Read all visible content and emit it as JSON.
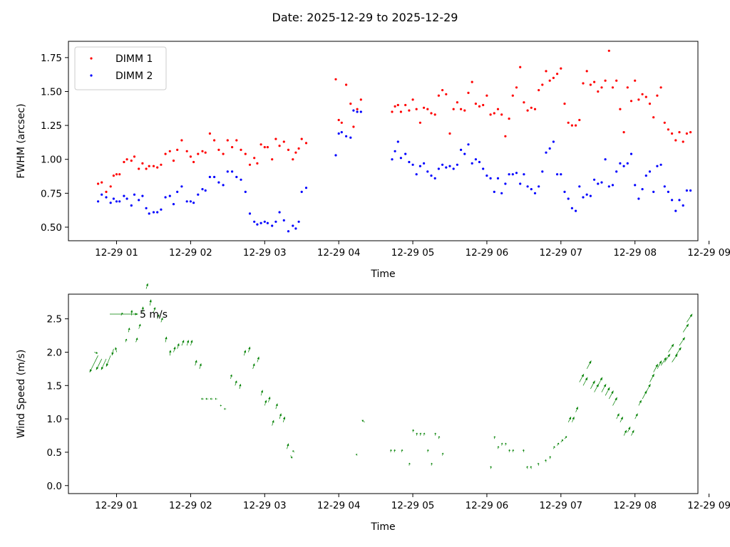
{
  "figure": {
    "title": "Date: 2025-12-29 to 2025-12-29"
  },
  "chart_data": [
    {
      "type": "scatter",
      "xlabel": "Time",
      "ylabel": "FWHM (arcsec)",
      "x_unit": "hours after 2025-12-29 00:00",
      "xlim": [
        0.35,
        8.85
      ],
      "ylim": [
        0.4,
        1.87
      ],
      "x_tick_values": [
        1,
        2,
        3,
        4,
        5,
        6,
        7,
        8,
        9
      ],
      "x_tick_labels": [
        "12-29 01",
        "12-29 02",
        "12-29 03",
        "12-29 04",
        "12-29 05",
        "12-29 06",
        "12-29 07",
        "12-29 08",
        "12-29 09"
      ],
      "y_ticks": [
        0.5,
        0.75,
        1.0,
        1.25,
        1.5,
        1.75
      ],
      "y_tick_labels": [
        "0.50",
        "0.75",
        "1.00",
        "1.25",
        "1.50",
        "1.75"
      ],
      "legend": {
        "position": "upper-left"
      },
      "series": [
        {
          "name": "DIMM 1",
          "color": "#ff0000",
          "x": [
            0.75,
            0.8,
            0.86,
            0.92,
            0.96,
            1.0,
            1.04,
            1.1,
            1.14,
            1.2,
            1.24,
            1.3,
            1.35,
            1.4,
            1.44,
            1.5,
            1.55,
            1.6,
            1.66,
            1.72,
            1.77,
            1.82,
            1.88,
            1.95,
            2.0,
            2.04,
            2.1,
            2.16,
            2.2,
            2.26,
            2.32,
            2.38,
            2.44,
            2.5,
            2.56,
            2.62,
            2.68,
            2.74,
            2.8,
            2.86,
            2.9,
            2.95,
            3.0,
            3.04,
            3.1,
            3.15,
            3.2,
            3.26,
            3.32,
            3.38,
            3.42,
            3.46,
            3.5,
            3.56,
            3.96,
            4.0,
            4.04,
            4.1,
            4.16,
            4.2,
            4.25,
            4.3,
            4.72,
            4.76,
            4.8,
            4.84,
            4.9,
            4.95,
            5.0,
            5.05,
            5.1,
            5.15,
            5.2,
            5.25,
            5.3,
            5.35,
            5.4,
            5.45,
            5.5,
            5.55,
            5.6,
            5.65,
            5.7,
            5.75,
            5.8,
            5.85,
            5.9,
            5.95,
            6.0,
            6.05,
            6.1,
            6.15,
            6.2,
            6.25,
            6.3,
            6.35,
            6.4,
            6.45,
            6.5,
            6.55,
            6.6,
            6.65,
            6.7,
            6.75,
            6.8,
            6.85,
            6.9,
            6.95,
            7.0,
            7.05,
            7.1,
            7.15,
            7.2,
            7.25,
            7.3,
            7.35,
            7.4,
            7.45,
            7.5,
            7.55,
            7.6,
            7.65,
            7.7,
            7.75,
            7.8,
            7.85,
            7.9,
            7.95,
            8.0,
            8.05,
            8.1,
            8.15,
            8.2,
            8.25,
            8.3,
            8.35,
            8.4,
            8.45,
            8.5,
            8.55,
            8.6,
            8.65,
            8.7,
            8.75
          ],
          "y": [
            0.82,
            0.83,
            0.76,
            0.8,
            0.88,
            0.89,
            0.89,
            0.98,
            1.0,
            0.99,
            1.02,
            0.93,
            0.97,
            0.93,
            0.95,
            0.95,
            0.94,
            0.96,
            1.04,
            1.06,
            0.99,
            1.07,
            1.14,
            1.06,
            1.02,
            0.98,
            1.04,
            1.06,
            1.05,
            1.19,
            1.14,
            1.07,
            1.04,
            1.14,
            1.09,
            1.14,
            1.07,
            1.04,
            0.96,
            1.01,
            0.97,
            1.11,
            1.09,
            1.09,
            1.0,
            1.15,
            1.1,
            1.13,
            1.07,
            1.0,
            1.05,
            1.08,
            1.15,
            1.12,
            1.59,
            1.29,
            1.27,
            1.55,
            1.41,
            1.24,
            1.37,
            1.44,
            1.35,
            1.39,
            1.4,
            1.35,
            1.4,
            1.36,
            1.44,
            1.37,
            1.27,
            1.38,
            1.37,
            1.34,
            1.33,
            1.47,
            1.51,
            1.48,
            1.19,
            1.37,
            1.42,
            1.37,
            1.36,
            1.49,
            1.57,
            1.41,
            1.39,
            1.4,
            1.47,
            1.33,
            1.34,
            1.37,
            1.33,
            1.17,
            1.3,
            1.47,
            1.53,
            1.68,
            1.42,
            1.36,
            1.38,
            1.37,
            1.51,
            1.55,
            1.65,
            1.58,
            1.6,
            1.63,
            1.67,
            1.41,
            1.27,
            1.25,
            1.25,
            1.29,
            1.56,
            1.65,
            1.55,
            1.57,
            1.5,
            1.53,
            1.58,
            1.8,
            1.53,
            1.58,
            1.37,
            1.2,
            1.53,
            1.43,
            1.58,
            1.44,
            1.48,
            1.46,
            1.41,
            1.31,
            1.47,
            1.53,
            1.27,
            1.22,
            1.19,
            1.14,
            1.2,
            1.13,
            1.19,
            1.2
          ]
        },
        {
          "name": "DIMM 2",
          "color": "#0000ff",
          "x": [
            0.75,
            0.8,
            0.86,
            0.92,
            0.96,
            1.0,
            1.04,
            1.1,
            1.14,
            1.2,
            1.24,
            1.3,
            1.35,
            1.4,
            1.44,
            1.5,
            1.55,
            1.6,
            1.66,
            1.72,
            1.77,
            1.82,
            1.88,
            1.95,
            2.0,
            2.04,
            2.1,
            2.16,
            2.2,
            2.26,
            2.32,
            2.38,
            2.44,
            2.5,
            2.56,
            2.62,
            2.68,
            2.74,
            2.8,
            2.86,
            2.9,
            2.95,
            3.0,
            3.04,
            3.1,
            3.15,
            3.2,
            3.26,
            3.32,
            3.38,
            3.42,
            3.46,
            3.5,
            3.56,
            3.96,
            4.0,
            4.04,
            4.1,
            4.16,
            4.2,
            4.25,
            4.3,
            4.72,
            4.76,
            4.8,
            4.84,
            4.9,
            4.95,
            5.0,
            5.05,
            5.1,
            5.15,
            5.2,
            5.25,
            5.3,
            5.35,
            5.4,
            5.45,
            5.5,
            5.55,
            5.6,
            5.65,
            5.7,
            5.75,
            5.8,
            5.85,
            5.9,
            5.95,
            6.0,
            6.05,
            6.1,
            6.15,
            6.2,
            6.25,
            6.3,
            6.35,
            6.4,
            6.45,
            6.5,
            6.55,
            6.6,
            6.65,
            6.7,
            6.75,
            6.8,
            6.85,
            6.9,
            6.95,
            7.0,
            7.05,
            7.1,
            7.15,
            7.2,
            7.25,
            7.3,
            7.35,
            7.4,
            7.45,
            7.5,
            7.55,
            7.6,
            7.65,
            7.7,
            7.75,
            7.8,
            7.85,
            7.9,
            7.95,
            8.0,
            8.05,
            8.1,
            8.15,
            8.2,
            8.25,
            8.3,
            8.35,
            8.4,
            8.45,
            8.5,
            8.55,
            8.6,
            8.65,
            8.7,
            8.75
          ],
          "y": [
            0.69,
            0.74,
            0.72,
            0.68,
            0.71,
            0.69,
            0.69,
            0.73,
            0.71,
            0.66,
            0.74,
            0.7,
            0.73,
            0.64,
            0.6,
            0.61,
            0.61,
            0.63,
            0.72,
            0.73,
            0.67,
            0.76,
            0.8,
            0.69,
            0.69,
            0.68,
            0.74,
            0.78,
            0.77,
            0.87,
            0.87,
            0.83,
            0.81,
            0.91,
            0.91,
            0.87,
            0.85,
            0.76,
            0.6,
            0.54,
            0.52,
            0.53,
            0.54,
            0.53,
            0.51,
            0.54,
            0.61,
            0.55,
            0.47,
            0.51,
            0.49,
            0.54,
            0.76,
            0.79,
            1.03,
            1.19,
            1.2,
            1.17,
            1.16,
            1.36,
            1.35,
            1.35,
            1.0,
            1.06,
            1.13,
            1.01,
            1.04,
            0.98,
            0.96,
            0.89,
            0.95,
            0.97,
            0.91,
            0.88,
            0.86,
            0.93,
            0.96,
            0.94,
            0.95,
            0.93,
            0.96,
            1.07,
            1.04,
            1.11,
            0.97,
            1.0,
            0.98,
            0.93,
            0.88,
            0.86,
            0.76,
            0.86,
            0.75,
            0.82,
            0.89,
            0.89,
            0.9,
            0.82,
            0.89,
            0.8,
            0.78,
            0.75,
            0.8,
            0.91,
            1.05,
            1.08,
            1.13,
            0.89,
            0.89,
            0.76,
            0.71,
            0.64,
            0.62,
            0.8,
            0.72,
            0.74,
            0.73,
            0.85,
            0.82,
            0.83,
            1.0,
            0.8,
            0.81,
            0.91,
            0.97,
            0.95,
            0.97,
            1.04,
            0.81,
            0.71,
            0.78,
            0.88,
            0.91,
            0.76,
            0.95,
            0.96,
            0.8,
            0.76,
            0.7,
            0.62,
            0.7,
            0.66,
            0.77,
            0.77
          ]
        }
      ]
    },
    {
      "type": "quiver",
      "xlabel": "Time",
      "ylabel": "Wind Speed (m/s)",
      "x_unit": "hours after 2025-12-29 00:00",
      "xlim": [
        0.35,
        8.85
      ],
      "ylim": [
        -0.12,
        2.87
      ],
      "x_tick_values": [
        1,
        2,
        3,
        4,
        5,
        6,
        7,
        8,
        9
      ],
      "x_tick_labels": [
        "12-29 01",
        "12-29 02",
        "12-29 03",
        "12-29 04",
        "12-29 05",
        "12-29 06",
        "12-29 07",
        "12-29 08",
        "12-29 09"
      ],
      "y_ticks": [
        0.0,
        0.5,
        1.0,
        1.5,
        2.0,
        2.5
      ],
      "y_tick_labels": [
        "0.0",
        "0.5",
        "1.0",
        "1.5",
        "2.0",
        "2.5"
      ],
      "color": "#008000",
      "quiverkey": {
        "label": "5 m/s",
        "speed": 5
      },
      "vectors": {
        "x": [
          0.7,
          0.75,
          0.8,
          0.86,
          0.92,
          0.96,
          1.0,
          1.06,
          1.12,
          1.16,
          1.2,
          1.26,
          1.3,
          1.35,
          1.4,
          1.45,
          1.5,
          1.55,
          1.6,
          1.66,
          1.72,
          1.77,
          1.82,
          1.88,
          1.95,
          2.0,
          2.06,
          2.12,
          2.18,
          2.24,
          2.3,
          2.36,
          2.42,
          2.48,
          2.54,
          2.6,
          2.66,
          2.72,
          2.78,
          2.84,
          2.9,
          2.95,
          3.0,
          3.05,
          3.1,
          3.15,
          3.2,
          3.25,
          3.3,
          3.35,
          3.4,
          4.25,
          4.35,
          4.7,
          4.75,
          4.85,
          4.95,
          5.0,
          5.05,
          5.1,
          5.15,
          5.2,
          5.25,
          5.3,
          5.35,
          5.4,
          6.05,
          6.1,
          6.15,
          6.2,
          6.25,
          6.3,
          6.35,
          6.5,
          6.55,
          6.6,
          6.7,
          6.8,
          6.85,
          6.9,
          6.95,
          7.0,
          7.05,
          7.1,
          7.15,
          7.2,
          7.25,
          7.3,
          7.35,
          7.4,
          7.45,
          7.5,
          7.55,
          7.6,
          7.65,
          7.7,
          7.75,
          7.8,
          7.85,
          7.9,
          7.95,
          8.0,
          8.05,
          8.1,
          8.15,
          8.2,
          8.25,
          8.3,
          8.35,
          8.4,
          8.45,
          8.5,
          8.55,
          8.6,
          8.65,
          8.7
        ],
        "speed": [
          2.0,
          1.95,
          1.9,
          1.9,
          1.95,
          2.05,
          2.0,
          2.55,
          2.15,
          2.3,
          2.55,
          2.15,
          2.35,
          2.6,
          2.95,
          2.7,
          2.6,
          2.5,
          2.45,
          2.15,
          1.95,
          2.0,
          2.05,
          2.1,
          2.1,
          2.1,
          1.8,
          1.75,
          1.3,
          1.3,
          1.3,
          1.3,
          1.2,
          1.15,
          1.6,
          1.5,
          1.45,
          1.95,
          2.0,
          1.75,
          1.85,
          1.35,
          1.2,
          1.25,
          0.9,
          1.15,
          1.0,
          0.95,
          0.55,
          0.45,
          0.5,
          0.45,
          0.95,
          0.5,
          0.5,
          0.5,
          0.3,
          0.8,
          0.75,
          0.75,
          0.75,
          0.5,
          0.3,
          0.75,
          0.7,
          0.45,
          0.25,
          0.7,
          0.55,
          0.6,
          0.6,
          0.5,
          0.5,
          0.5,
          0.25,
          0.25,
          0.3,
          0.35,
          0.4,
          0.55,
          0.6,
          0.65,
          0.7,
          0.95,
          0.95,
          1.1,
          1.55,
          1.5,
          1.75,
          1.45,
          1.4,
          1.5,
          1.4,
          1.35,
          1.3,
          1.2,
          1.0,
          0.95,
          0.75,
          0.8,
          0.75,
          1.0,
          1.2,
          1.3,
          1.4,
          1.55,
          1.7,
          1.75,
          1.8,
          1.85,
          2.0,
          1.85,
          1.95,
          2.1,
          2.3,
          2.45
        ],
        "u": [
          0.6,
          -1.5,
          -1.0,
          -0.9,
          -0.8,
          -0.3,
          -0.2,
          0.3,
          0.2,
          0.2,
          0.1,
          0.3,
          0.3,
          0.1,
          0.3,
          0.2,
          0.3,
          0.3,
          0.3,
          0.2,
          0.1,
          0.3,
          0.3,
          0.4,
          0.3,
          0.3,
          0.3,
          0.3,
          -0.5,
          -0.5,
          -0.5,
          -0.4,
          -0.3,
          -0.4,
          0.2,
          0.3,
          0.2,
          0.3,
          0.3,
          0.3,
          0.3,
          0.3,
          0.3,
          0.3,
          0.3,
          0.3,
          0.3,
          0.3,
          0.3,
          0.3,
          -0.3,
          -0.2,
          -0.5,
          0.1,
          0.1,
          0.1,
          0.1,
          0.1,
          0.1,
          0.1,
          0.1,
          0.1,
          0.1,
          0.1,
          0.1,
          0.1,
          0.1,
          0.1,
          0.1,
          0.1,
          0.1,
          0.1,
          0.1,
          -0.1,
          -0.1,
          -0.1,
          -0.1,
          -0.1,
          0.1,
          0.2,
          0.3,
          0.4,
          0.4,
          0.5,
          0.4,
          0.4,
          0.8,
          0.8,
          0.8,
          0.8,
          0.8,
          0.8,
          0.8,
          0.8,
          0.8,
          0.8,
          0.5,
          0.5,
          0.5,
          0.5,
          0.5,
          0.5,
          0.5,
          0.8,
          0.8,
          0.8,
          0.8,
          0.8,
          1.0,
          1.0,
          1.0,
          1.0,
          1.0,
          1.0,
          1.0,
          1.0
        ],
        "v": [
          -0.2,
          -3.0,
          -2.0,
          -2.0,
          -2.0,
          -1.2,
          0.9,
          0.5,
          0.6,
          0.8,
          1.0,
          0.8,
          0.9,
          1.0,
          1.0,
          1.1,
          0.9,
          0.8,
          0.8,
          1.0,
          1.0,
          1.0,
          1.0,
          1.0,
          1.0,
          1.0,
          1.0,
          1.0,
          0.0,
          0.0,
          0.0,
          0.0,
          0.0,
          0.0,
          0.8,
          0.9,
          0.9,
          1.0,
          1.0,
          1.0,
          1.0,
          1.0,
          1.0,
          1.0,
          1.0,
          1.0,
          1.0,
          1.0,
          1.0,
          -0.5,
          0.3,
          0.3,
          0.4,
          0.5,
          0.5,
          0.5,
          0.5,
          0.5,
          0.5,
          0.5,
          0.5,
          0.5,
          0.5,
          0.5,
          0.5,
          0.5,
          0.5,
          0.5,
          0.5,
          0.5,
          0.5,
          0.5,
          0.5,
          0.5,
          0.5,
          0.5,
          0.5,
          0.5,
          0.5,
          0.5,
          0.5,
          0.5,
          0.5,
          1.0,
          1.0,
          1.0,
          1.5,
          1.5,
          1.5,
          1.5,
          1.5,
          1.5,
          1.5,
          1.5,
          1.5,
          1.5,
          1.0,
          1.0,
          1.0,
          1.0,
          1.0,
          1.0,
          1.0,
          1.5,
          1.5,
          1.5,
          1.5,
          1.5,
          1.5,
          1.5,
          1.5,
          1.5,
          1.5,
          1.5,
          1.5,
          1.5
        ]
      }
    }
  ]
}
